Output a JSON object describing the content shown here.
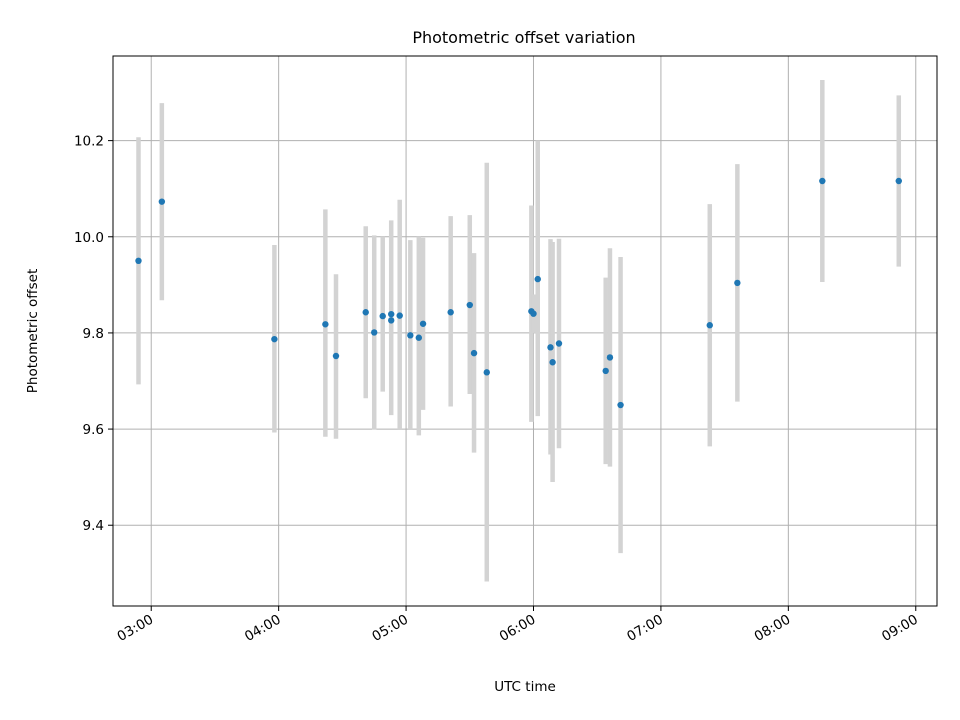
{
  "chart_data": {
    "type": "scatter",
    "title": "Photometric offset variation",
    "xlabel": "UTC time",
    "ylabel": "Photometric offset",
    "xlim": [
      "02:42",
      "09:10"
    ],
    "ylim": [
      9.232,
      10.376
    ],
    "x_ticks": [
      "03:00",
      "04:00",
      "05:00",
      "06:00",
      "07:00",
      "08:00",
      "09:00"
    ],
    "y_ticks": [
      9.4,
      9.6,
      9.8,
      10.0,
      10.2
    ],
    "grid": true,
    "colors": {
      "point": "#1f77b4",
      "errorbar": "#d3d3d3"
    },
    "series": [
      {
        "points": [
          {
            "x": "02:54",
            "y": 9.95,
            "low": 9.693,
            "high": 10.207
          },
          {
            "x": "03:05",
            "y": 10.073,
            "low": 9.868,
            "high": 10.278
          },
          {
            "x": "03:58",
            "y": 9.787,
            "low": 9.593,
            "high": 9.983
          },
          {
            "x": "04:22",
            "y": 9.818,
            "low": 9.584,
            "high": 10.057
          },
          {
            "x": "04:27",
            "y": 9.752,
            "low": 9.58,
            "high": 9.922
          },
          {
            "x": "04:41",
            "y": 9.843,
            "low": 9.664,
            "high": 10.022
          },
          {
            "x": "04:45",
            "y": 9.801,
            "low": 9.599,
            "high": 10.003
          },
          {
            "x": "04:49",
            "y": 9.835,
            "low": 9.678,
            "high": 10.0
          },
          {
            "x": "04:53",
            "y": 9.839,
            "low": 9.629,
            "high": 10.034
          },
          {
            "x": "04:53",
            "y": 9.826,
            "low": 9.8,
            "high": 9.852
          },
          {
            "x": "04:57",
            "y": 9.836,
            "low": 9.6,
            "high": 10.077
          },
          {
            "x": "05:02",
            "y": 9.795,
            "low": 9.6,
            "high": 9.993
          },
          {
            "x": "05:06",
            "y": 9.79,
            "low": 9.587,
            "high": 10.0
          },
          {
            "x": "05:08",
            "y": 9.819,
            "low": 9.64,
            "high": 9.998
          },
          {
            "x": "05:21",
            "y": 9.843,
            "low": 9.647,
            "high": 10.043
          },
          {
            "x": "05:30",
            "y": 9.858,
            "low": 9.673,
            "high": 10.045
          },
          {
            "x": "05:32",
            "y": 9.758,
            "low": 9.551,
            "high": 9.966
          },
          {
            "x": "05:38",
            "y": 9.718,
            "low": 9.283,
            "high": 10.154
          },
          {
            "x": "05:59",
            "y": 9.845,
            "low": 9.615,
            "high": 10.065
          },
          {
            "x": "06:00",
            "y": 9.84,
            "low": 9.8,
            "high": 9.88
          },
          {
            "x": "06:02",
            "y": 9.912,
            "low": 9.627,
            "high": 10.2
          },
          {
            "x": "06:08",
            "y": 9.77,
            "low": 9.547,
            "high": 9.995
          },
          {
            "x": "06:09",
            "y": 9.739,
            "low": 9.49,
            "high": 9.989
          },
          {
            "x": "06:12",
            "y": 9.778,
            "low": 9.56,
            "high": 9.996
          },
          {
            "x": "06:34",
            "y": 9.721,
            "low": 9.527,
            "high": 9.915
          },
          {
            "x": "06:36",
            "y": 9.749,
            "low": 9.522,
            "high": 9.976
          },
          {
            "x": "06:41",
            "y": 9.65,
            "low": 9.342,
            "high": 9.958
          },
          {
            "x": "07:23",
            "y": 9.816,
            "low": 9.564,
            "high": 10.068
          },
          {
            "x": "07:36",
            "y": 9.904,
            "low": 9.657,
            "high": 10.151
          },
          {
            "x": "08:16",
            "y": 10.116,
            "low": 9.906,
            "high": 10.326
          },
          {
            "x": "08:52",
            "y": 10.116,
            "low": 9.938,
            "high": 10.294
          }
        ]
      }
    ]
  }
}
